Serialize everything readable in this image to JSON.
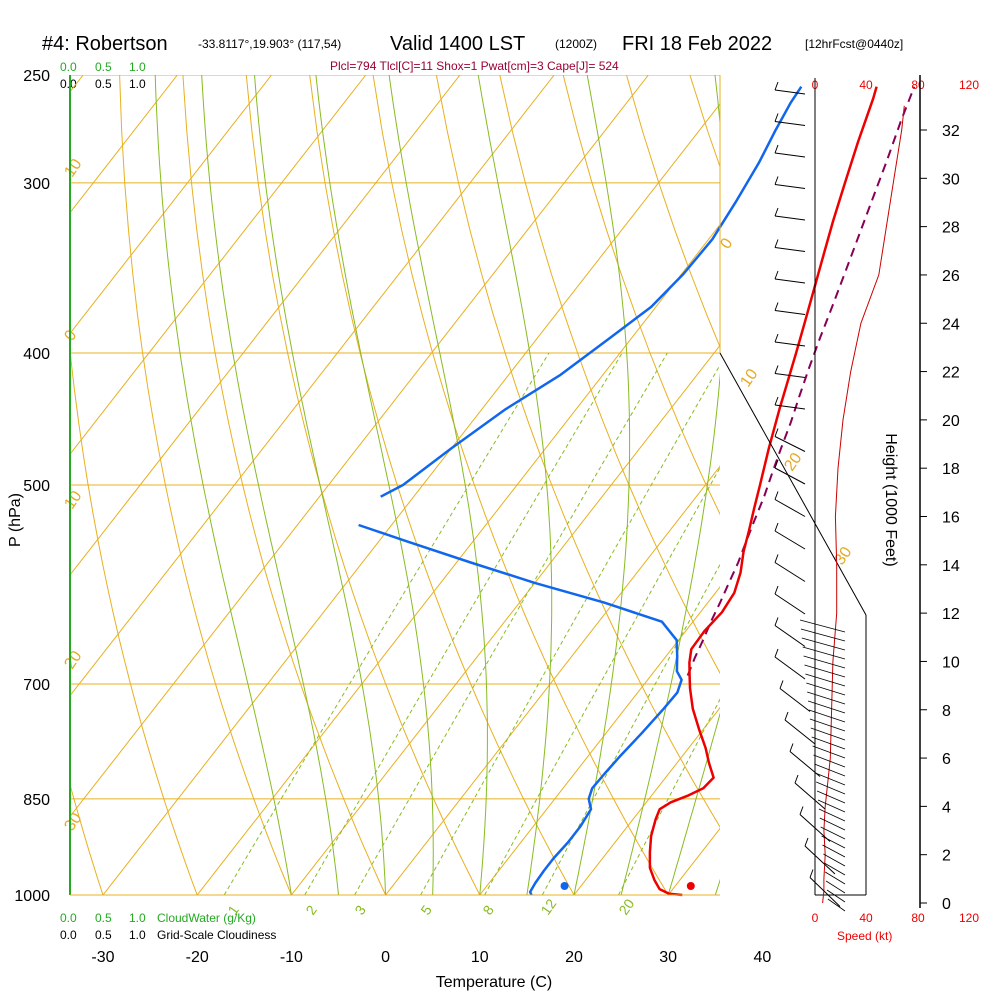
{
  "header": {
    "title_station": "#4: Robertson",
    "title_coords": "-33.8117°,19.903° (117,54)",
    "title_valid": "Valid 1400 LST",
    "title_z": "(1200Z)",
    "title_date": "FRI 18 Feb 2022",
    "title_fcst": "[12hrFcst@0440z]"
  },
  "indices_text": "Plcl=794 Tlcl[C]=11 Shox=1 Pwat[cm]=3 Cape[J]= 524",
  "cloud_scales": {
    "top_green": [
      "0.0",
      "0.5",
      "1.0"
    ],
    "top_black": [
      "0.0",
      "0.5",
      "1.0"
    ],
    "bottom_green": [
      "0.0",
      "0.5",
      "1.0"
    ],
    "bottom_green_label": "CloudWater (g/Kg)",
    "bottom_black": [
      "0.0",
      "0.5",
      "1.0"
    ],
    "bottom_black_label": "Grid-Scale Cloudiness"
  },
  "speed_scale": {
    "top": [
      "0",
      "40",
      "80",
      "120"
    ],
    "bottom": [
      "0",
      "40",
      "80",
      "120"
    ],
    "label": "Speed (kt)"
  },
  "colors": {
    "isotherm": "#e8b020",
    "mixing_ratio": "#88bb22",
    "temperature": "#ee0000",
    "dewpoint": "#1166ee",
    "parcel": "#880055",
    "green_text": "#22aa22",
    "red_text": "#ee0000",
    "index_text": "#990033"
  },
  "chart_data": {
    "type": "line",
    "xlabel": "Temperature (C)",
    "ylabel": "P (hPa)",
    "y2label": "Height (1000 Feet)",
    "x_ticks": [
      -30,
      -20,
      -10,
      0,
      10,
      20,
      30,
      40
    ],
    "p_ticks": [
      250,
      300,
      400,
      500,
      700,
      850,
      1000
    ],
    "height_ticks": [
      0,
      2,
      4,
      6,
      8,
      10,
      12,
      14,
      16,
      18,
      20,
      22,
      24,
      26,
      28,
      30,
      32
    ],
    "xlim": [
      -33.5,
      35.5
    ],
    "plim": [
      250,
      1000
    ],
    "mixing_ratio_labels": [
      "1",
      "2",
      "3",
      "5",
      "8",
      "12",
      "20"
    ],
    "adiabat_labels": [
      "10",
      "0",
      "10",
      "20",
      "30",
      "0",
      "10",
      "20",
      "30"
    ],
    "series": [
      {
        "key": "temperature",
        "points": [
          [
            1000,
            31.5
          ],
          [
            998,
            30.0
          ],
          [
            990,
            28.6
          ],
          [
            975,
            27.3
          ],
          [
            955,
            25.8
          ],
          [
            930,
            24.5
          ],
          [
            905,
            23.3
          ],
          [
            880,
            22.4
          ],
          [
            865,
            22.0
          ],
          [
            855,
            22.6
          ],
          [
            845,
            23.9
          ],
          [
            835,
            24.9
          ],
          [
            820,
            25.1
          ],
          [
            800,
            23.4
          ],
          [
            780,
            21.8
          ],
          [
            755,
            19.5
          ],
          [
            730,
            17.2
          ],
          [
            705,
            15.2
          ],
          [
            690,
            14.1
          ],
          [
            675,
            13.0
          ],
          [
            660,
            12.1
          ],
          [
            640,
            12.0
          ],
          [
            620,
            12.3
          ],
          [
            600,
            12.0
          ],
          [
            580,
            11.0
          ],
          [
            560,
            9.6
          ],
          [
            540,
            8.4
          ],
          [
            520,
            7.1
          ],
          [
            500,
            5.8
          ],
          [
            470,
            3.7
          ],
          [
            440,
            1.6
          ],
          [
            400,
            -1.3
          ],
          [
            380,
            -2.9
          ],
          [
            360,
            -4.6
          ],
          [
            340,
            -6.4
          ],
          [
            320,
            -8.3
          ],
          [
            300,
            -10.2
          ],
          [
            280,
            -12.2
          ],
          [
            260,
            -14.2
          ],
          [
            255,
            -14.8
          ]
        ]
      },
      {
        "key": "dewpoint",
        "points": [
          [
            1000,
            15.5
          ],
          [
            995,
            15.1
          ],
          [
            980,
            14.9
          ],
          [
            960,
            14.8
          ],
          [
            940,
            14.8
          ],
          [
            915,
            15.0
          ],
          [
            890,
            15.0
          ],
          [
            865,
            14.7
          ],
          [
            850,
            13.6
          ],
          [
            835,
            13.1
          ],
          [
            815,
            13.2
          ],
          [
            790,
            13.4
          ],
          [
            760,
            13.8
          ],
          [
            730,
            14.1
          ],
          [
            710,
            14.2
          ],
          [
            695,
            13.6
          ],
          [
            685,
            12.4
          ],
          [
            668,
            11.2
          ],
          [
            650,
            9.8
          ],
          [
            630,
            6.7
          ],
          [
            610,
            -1.0
          ],
          [
            590,
            -10.0
          ],
          [
            570,
            -18.5
          ],
          [
            550,
            -27.0
          ],
          [
            535,
            -33.5
          ]
        ]
      },
      {
        "key": "dewpoint_upper",
        "points": [
          [
            510,
            -33.5
          ],
          [
            500,
            -32.1
          ],
          [
            470,
            -30.0
          ],
          [
            440,
            -27.5
          ],
          [
            415,
            -24.5
          ],
          [
            390,
            -22.3
          ],
          [
            370,
            -20.5
          ],
          [
            350,
            -19.8
          ],
          [
            330,
            -19.6
          ],
          [
            310,
            -20.2
          ],
          [
            290,
            -21.0
          ],
          [
            275,
            -21.9
          ],
          [
            262,
            -22.6
          ],
          [
            255,
            -22.8
          ]
        ]
      },
      {
        "key": "parcel",
        "points": [
          [
            690,
            13.9
          ],
          [
            670,
            13.2
          ],
          [
            650,
            12.6
          ],
          [
            630,
            11.9
          ],
          [
            610,
            11.3
          ],
          [
            590,
            10.6
          ],
          [
            570,
            9.9
          ],
          [
            550,
            9.0
          ],
          [
            530,
            8.1
          ],
          [
            510,
            7.2
          ],
          [
            490,
            6.1
          ],
          [
            470,
            5.0
          ],
          [
            450,
            3.9
          ],
          [
            430,
            2.6
          ],
          [
            410,
            1.3
          ],
          [
            390,
            0.0
          ],
          [
            370,
            -1.3
          ],
          [
            350,
            -2.7
          ],
          [
            330,
            -4.2
          ],
          [
            310,
            -5.8
          ],
          [
            290,
            -7.5
          ],
          [
            270,
            -9.4
          ],
          [
            255,
            -10.8
          ]
        ]
      }
    ],
    "surface_markers": {
      "temperature_p": 1000,
      "temperature_c": 32.4,
      "dewpoint_p": 1000,
      "dewpoint_c": 19.0
    },
    "wind_speed_profile_kt": [
      [
        0,
        6
      ],
      [
        0.5,
        7
      ],
      [
        1,
        7
      ],
      [
        2,
        8
      ],
      [
        3,
        7
      ],
      [
        4,
        8
      ],
      [
        5,
        10
      ],
      [
        6,
        12
      ],
      [
        8,
        13
      ],
      [
        10,
        14
      ],
      [
        12,
        17
      ],
      [
        14,
        17
      ],
      [
        16,
        16
      ],
      [
        18,
        18
      ],
      [
        20,
        22
      ],
      [
        22,
        28
      ],
      [
        24,
        36
      ],
      [
        26,
        50
      ],
      [
        28,
        56
      ],
      [
        30,
        62
      ],
      [
        32,
        68
      ],
      [
        33,
        70
      ]
    ]
  }
}
